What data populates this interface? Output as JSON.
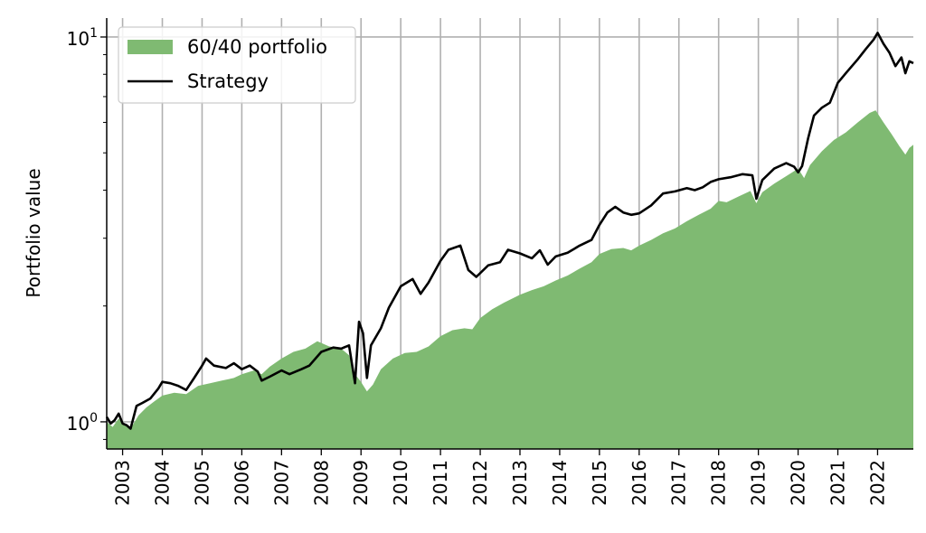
{
  "chart_data": {
    "type": "line",
    "title": "",
    "xlabel": "",
    "ylabel": "Portfolio value",
    "yscale": "log",
    "ylim": [
      0.85,
      11.2
    ],
    "xlim": [
      2002.6,
      2022.9
    ],
    "grid": {
      "x": true,
      "y": true
    },
    "y_ticks": [
      {
        "value": 1,
        "base": "10",
        "exp": "0"
      },
      {
        "value": 10,
        "base": "10",
        "exp": "1"
      }
    ],
    "x_ticks": [
      "2003",
      "2004",
      "2005",
      "2006",
      "2007",
      "2008",
      "2009",
      "2010",
      "2011",
      "2012",
      "2013",
      "2014",
      "2015",
      "2016",
      "2017",
      "2018",
      "2019",
      "2020",
      "2021",
      "2022"
    ],
    "legend": {
      "placement": "upper-left"
    },
    "series": [
      {
        "name": "60/40 portfolio",
        "kind": "area",
        "color": "#7fba72",
        "points": [
          [
            2002.6,
            1.0
          ],
          [
            2002.75,
            0.97
          ],
          [
            2002.9,
            1.02
          ],
          [
            2003.05,
            0.98
          ],
          [
            2003.2,
            0.96
          ],
          [
            2003.4,
            1.04
          ],
          [
            2003.6,
            1.09
          ],
          [
            2003.8,
            1.13
          ],
          [
            2004.0,
            1.17
          ],
          [
            2004.3,
            1.19
          ],
          [
            2004.6,
            1.18
          ],
          [
            2004.9,
            1.24
          ],
          [
            2005.2,
            1.26
          ],
          [
            2005.5,
            1.28
          ],
          [
            2005.8,
            1.3
          ],
          [
            2006.0,
            1.33
          ],
          [
            2006.3,
            1.36
          ],
          [
            2006.5,
            1.33
          ],
          [
            2006.7,
            1.39
          ],
          [
            2007.0,
            1.46
          ],
          [
            2007.3,
            1.52
          ],
          [
            2007.6,
            1.55
          ],
          [
            2007.9,
            1.62
          ],
          [
            2008.2,
            1.57
          ],
          [
            2008.5,
            1.55
          ],
          [
            2008.7,
            1.49
          ],
          [
            2008.85,
            1.33
          ],
          [
            2009.0,
            1.27
          ],
          [
            2009.15,
            1.2
          ],
          [
            2009.3,
            1.25
          ],
          [
            2009.5,
            1.37
          ],
          [
            2009.8,
            1.46
          ],
          [
            2010.1,
            1.51
          ],
          [
            2010.4,
            1.52
          ],
          [
            2010.7,
            1.57
          ],
          [
            2011.0,
            1.67
          ],
          [
            2011.3,
            1.73
          ],
          [
            2011.6,
            1.75
          ],
          [
            2011.8,
            1.74
          ],
          [
            2012.0,
            1.86
          ],
          [
            2012.3,
            1.96
          ],
          [
            2012.6,
            2.04
          ],
          [
            2013.0,
            2.14
          ],
          [
            2013.3,
            2.2
          ],
          [
            2013.6,
            2.25
          ],
          [
            2013.9,
            2.33
          ],
          [
            2014.2,
            2.4
          ],
          [
            2014.5,
            2.5
          ],
          [
            2014.8,
            2.6
          ],
          [
            2015.0,
            2.73
          ],
          [
            2015.3,
            2.81
          ],
          [
            2015.6,
            2.83
          ],
          [
            2015.8,
            2.79
          ],
          [
            2016.0,
            2.87
          ],
          [
            2016.3,
            2.97
          ],
          [
            2016.6,
            3.09
          ],
          [
            2016.9,
            3.18
          ],
          [
            2017.2,
            3.32
          ],
          [
            2017.5,
            3.45
          ],
          [
            2017.8,
            3.58
          ],
          [
            2018.0,
            3.75
          ],
          [
            2018.2,
            3.72
          ],
          [
            2018.5,
            3.85
          ],
          [
            2018.8,
            3.98
          ],
          [
            2018.95,
            3.7
          ],
          [
            2019.1,
            3.95
          ],
          [
            2019.4,
            4.16
          ],
          [
            2019.7,
            4.35
          ],
          [
            2020.0,
            4.55
          ],
          [
            2020.15,
            4.3
          ],
          [
            2020.3,
            4.65
          ],
          [
            2020.6,
            5.05
          ],
          [
            2020.9,
            5.4
          ],
          [
            2021.2,
            5.65
          ],
          [
            2021.5,
            6.0
          ],
          [
            2021.8,
            6.35
          ],
          [
            2021.95,
            6.45
          ],
          [
            2022.15,
            6.0
          ],
          [
            2022.35,
            5.6
          ],
          [
            2022.55,
            5.2
          ],
          [
            2022.7,
            4.95
          ],
          [
            2022.8,
            5.15
          ],
          [
            2022.9,
            5.25
          ]
        ]
      },
      {
        "name": "Strategy",
        "kind": "line",
        "color": "#000000",
        "points": [
          [
            2002.6,
            1.03
          ],
          [
            2002.7,
            0.99
          ],
          [
            2002.8,
            1.01
          ],
          [
            2002.9,
            1.05
          ],
          [
            2003.0,
            0.99
          ],
          [
            2003.1,
            0.98
          ],
          [
            2003.2,
            0.96
          ],
          [
            2003.35,
            1.1
          ],
          [
            2003.5,
            1.12
          ],
          [
            2003.7,
            1.15
          ],
          [
            2003.9,
            1.22
          ],
          [
            2004.0,
            1.27
          ],
          [
            2004.2,
            1.26
          ],
          [
            2004.4,
            1.24
          ],
          [
            2004.6,
            1.21
          ],
          [
            2004.8,
            1.3
          ],
          [
            2005.0,
            1.4
          ],
          [
            2005.1,
            1.46
          ],
          [
            2005.3,
            1.4
          ],
          [
            2005.6,
            1.38
          ],
          [
            2005.8,
            1.42
          ],
          [
            2006.0,
            1.37
          ],
          [
            2006.2,
            1.4
          ],
          [
            2006.4,
            1.35
          ],
          [
            2006.5,
            1.28
          ],
          [
            2006.7,
            1.31
          ],
          [
            2007.0,
            1.36
          ],
          [
            2007.2,
            1.33
          ],
          [
            2007.5,
            1.37
          ],
          [
            2007.7,
            1.4
          ],
          [
            2008.0,
            1.52
          ],
          [
            2008.3,
            1.56
          ],
          [
            2008.5,
            1.55
          ],
          [
            2008.7,
            1.58
          ],
          [
            2008.85,
            1.26
          ],
          [
            2008.95,
            1.82
          ],
          [
            2009.05,
            1.7
          ],
          [
            2009.15,
            1.3
          ],
          [
            2009.25,
            1.58
          ],
          [
            2009.5,
            1.75
          ],
          [
            2009.7,
            1.98
          ],
          [
            2010.0,
            2.25
          ],
          [
            2010.3,
            2.35
          ],
          [
            2010.5,
            2.15
          ],
          [
            2010.7,
            2.3
          ],
          [
            2011.0,
            2.62
          ],
          [
            2011.2,
            2.8
          ],
          [
            2011.5,
            2.87
          ],
          [
            2011.7,
            2.48
          ],
          [
            2011.9,
            2.38
          ],
          [
            2012.2,
            2.55
          ],
          [
            2012.5,
            2.6
          ],
          [
            2012.7,
            2.8
          ],
          [
            2013.0,
            2.74
          ],
          [
            2013.3,
            2.66
          ],
          [
            2013.5,
            2.79
          ],
          [
            2013.7,
            2.56
          ],
          [
            2013.9,
            2.69
          ],
          [
            2014.2,
            2.75
          ],
          [
            2014.5,
            2.87
          ],
          [
            2014.8,
            2.97
          ],
          [
            2015.0,
            3.25
          ],
          [
            2015.2,
            3.5
          ],
          [
            2015.4,
            3.62
          ],
          [
            2015.6,
            3.5
          ],
          [
            2015.8,
            3.45
          ],
          [
            2016.0,
            3.48
          ],
          [
            2016.3,
            3.65
          ],
          [
            2016.6,
            3.92
          ],
          [
            2016.9,
            3.97
          ],
          [
            2017.2,
            4.05
          ],
          [
            2017.4,
            4.0
          ],
          [
            2017.6,
            4.07
          ],
          [
            2017.8,
            4.2
          ],
          [
            2018.0,
            4.27
          ],
          [
            2018.3,
            4.32
          ],
          [
            2018.6,
            4.4
          ],
          [
            2018.85,
            4.37
          ],
          [
            2018.95,
            3.8
          ],
          [
            2019.1,
            4.25
          ],
          [
            2019.4,
            4.55
          ],
          [
            2019.7,
            4.7
          ],
          [
            2019.9,
            4.6
          ],
          [
            2020.0,
            4.45
          ],
          [
            2020.1,
            4.62
          ],
          [
            2020.25,
            5.45
          ],
          [
            2020.4,
            6.25
          ],
          [
            2020.6,
            6.55
          ],
          [
            2020.8,
            6.75
          ],
          [
            2021.0,
            7.6
          ],
          [
            2021.2,
            8.05
          ],
          [
            2021.5,
            8.75
          ],
          [
            2021.7,
            9.3
          ],
          [
            2021.9,
            9.85
          ],
          [
            2022.0,
            10.25
          ],
          [
            2022.15,
            9.6
          ],
          [
            2022.3,
            9.1
          ],
          [
            2022.45,
            8.4
          ],
          [
            2022.6,
            8.85
          ],
          [
            2022.7,
            8.05
          ],
          [
            2022.8,
            8.65
          ],
          [
            2022.9,
            8.55
          ]
        ]
      }
    ]
  }
}
